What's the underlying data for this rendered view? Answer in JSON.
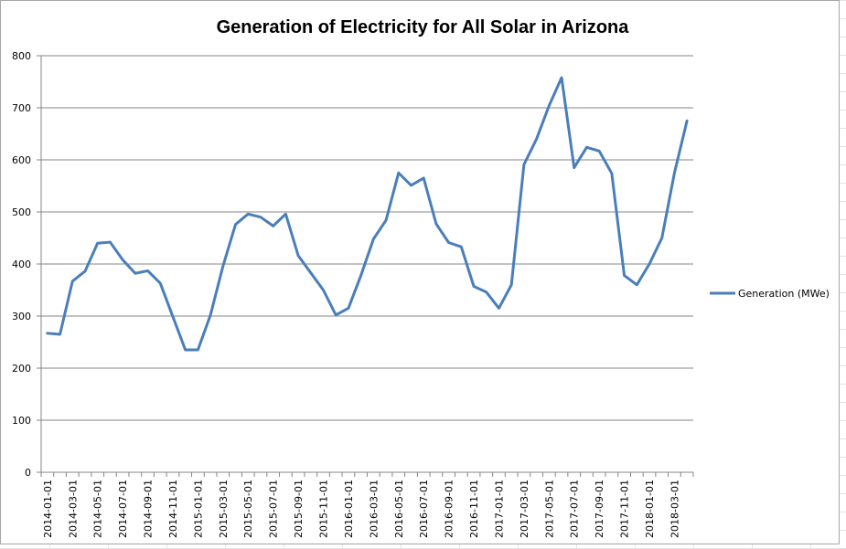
{
  "chart_data": {
    "type": "line",
    "title": "Generation of Electricity for All Solar in Arizona",
    "xlabel": "",
    "ylabel": "",
    "ylim": [
      0,
      800
    ],
    "yticks": [
      0,
      100,
      200,
      300,
      400,
      500,
      600,
      700,
      800
    ],
    "grid": true,
    "legend_position": "right",
    "x": [
      "2014-01-01",
      "2014-02-01",
      "2014-03-01",
      "2014-04-01",
      "2014-05-01",
      "2014-06-01",
      "2014-07-01",
      "2014-08-01",
      "2014-09-01",
      "2014-10-01",
      "2014-11-01",
      "2014-12-01",
      "2015-01-01",
      "2015-02-01",
      "2015-03-01",
      "2015-04-01",
      "2015-05-01",
      "2015-06-01",
      "2015-07-01",
      "2015-08-01",
      "2015-09-01",
      "2015-10-01",
      "2015-11-01",
      "2015-12-01",
      "2016-01-01",
      "2016-02-01",
      "2016-03-01",
      "2016-04-01",
      "2016-05-01",
      "2016-06-01",
      "2016-07-01",
      "2016-08-01",
      "2016-09-01",
      "2016-10-01",
      "2016-11-01",
      "2016-12-01",
      "2017-01-01",
      "2017-02-01",
      "2017-03-01",
      "2017-04-01",
      "2017-05-01",
      "2017-06-01",
      "2017-07-01",
      "2017-08-01",
      "2017-09-01",
      "2017-10-01",
      "2017-11-01",
      "2017-12-01",
      "2018-01-01",
      "2018-02-01",
      "2018-03-01",
      "2018-04-01"
    ],
    "x_tick_labels": [
      "2014-01-01",
      "2014-03-01",
      "2014-05-01",
      "2014-07-01",
      "2014-09-01",
      "2014-11-01",
      "2015-01-01",
      "2015-03-01",
      "2015-05-01",
      "2015-07-01",
      "2015-09-01",
      "2015-11-01",
      "2016-01-01",
      "2016-03-01",
      "2016-05-01",
      "2016-07-01",
      "2016-09-01",
      "2016-11-01",
      "2017-01-01",
      "2017-03-01",
      "2017-05-01",
      "2017-07-01",
      "2017-09-01",
      "2017-11-01",
      "2018-01-01",
      "2018-03-01"
    ],
    "series": [
      {
        "name": "Generation (MWe)",
        "color": "#4a7ebb",
        "values": [
          267,
          265,
          367,
          386,
          440,
          442,
          408,
          382,
          387,
          363,
          299,
          235,
          235,
          302,
          396,
          476,
          496,
          490,
          473,
          496,
          416,
          383,
          350,
          302,
          315,
          378,
          448,
          484,
          575,
          551,
          565,
          477,
          441,
          433,
          357,
          346,
          315,
          360,
          591,
          640,
          704,
          758,
          585,
          624,
          617,
          574,
          378,
          360,
          400,
          450,
          575,
          675
        ]
      }
    ]
  }
}
